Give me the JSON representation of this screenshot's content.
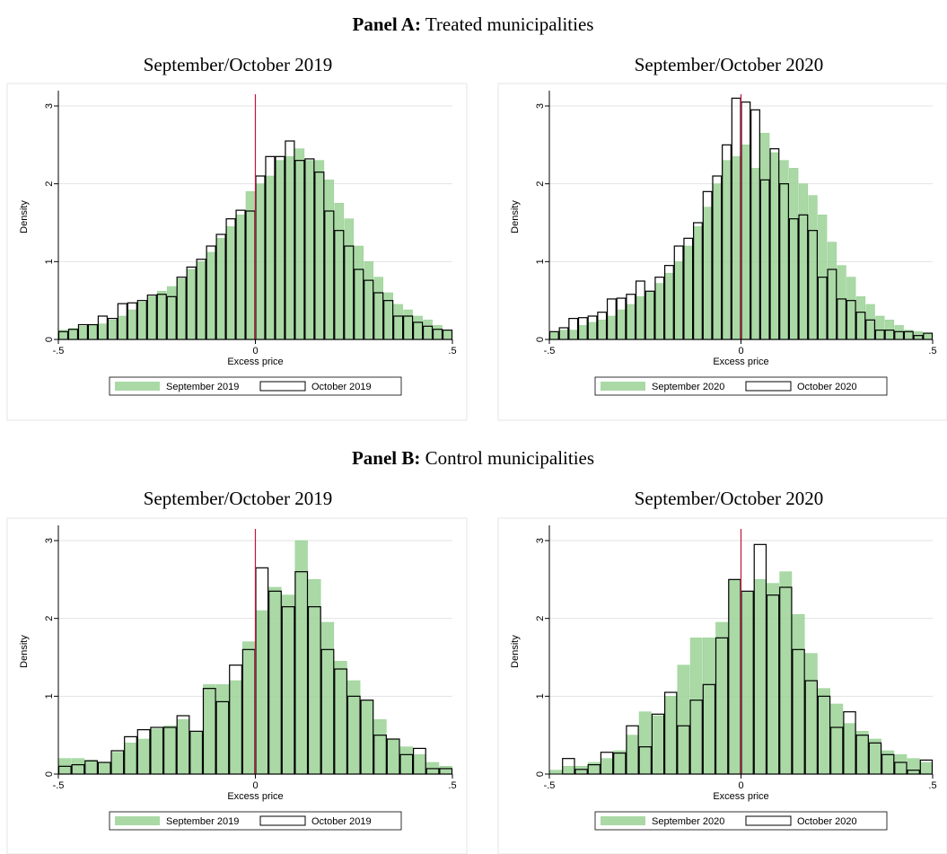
{
  "panels": [
    {
      "label": "Panel A:",
      "title": "Treated municipalities"
    },
    {
      "label": "Panel B:",
      "title": "Control municipalities"
    }
  ],
  "chart_data": [
    {
      "type": "histogram",
      "title": "September/October 2019",
      "xlabel": "Excess price",
      "ylabel": "Density",
      "bins": [
        -0.5,
        -0.475,
        -0.45,
        -0.425,
        -0.4,
        -0.375,
        -0.35,
        -0.325,
        -0.3,
        -0.275,
        -0.25,
        -0.225,
        -0.2,
        -0.175,
        -0.15,
        -0.125,
        -0.1,
        -0.075,
        -0.05,
        -0.025,
        0,
        0.025,
        0.05,
        0.075,
        0.1,
        0.125,
        0.15,
        0.175,
        0.2,
        0.225,
        0.25,
        0.275,
        0.3,
        0.325,
        0.35,
        0.375,
        0.4,
        0.425,
        0.45,
        0.475,
        0.5
      ],
      "series": [
        {
          "name": "September 2019",
          "color": "#9bd296",
          "fill": true,
          "values": [
            0.12,
            0.14,
            0.17,
            0.19,
            0.2,
            0.25,
            0.3,
            0.38,
            0.48,
            0.55,
            0.62,
            0.68,
            0.78,
            0.9,
            1.0,
            1.12,
            1.3,
            1.45,
            1.6,
            1.9,
            2.0,
            2.1,
            2.3,
            2.35,
            2.45,
            2.3,
            2.3,
            2.05,
            1.75,
            1.55,
            1.2,
            1.0,
            0.8,
            0.6,
            0.45,
            0.38,
            0.3,
            0.25,
            0.18,
            0.12
          ]
        },
        {
          "name": "October 2019",
          "color": "#000000",
          "fill": false,
          "values": [
            0.1,
            0.13,
            0.19,
            0.19,
            0.3,
            0.27,
            0.46,
            0.47,
            0.5,
            0.57,
            0.58,
            0.55,
            0.8,
            0.93,
            1.03,
            1.2,
            1.35,
            1.55,
            1.66,
            1.65,
            2.1,
            2.35,
            2.35,
            2.55,
            2.3,
            2.32,
            2.15,
            1.65,
            1.4,
            1.2,
            0.9,
            0.76,
            0.6,
            0.5,
            0.3,
            0.3,
            0.22,
            0.17,
            0.13,
            0.12
          ]
        }
      ],
      "xlim": [
        -0.5,
        0.5
      ],
      "ylim": [
        0,
        3.15
      ],
      "xticks": [
        {
          "value": -0.5,
          "label": "-.5"
        },
        0,
        {
          "value": 0.5,
          "label": ".5"
        }
      ],
      "yticks": [
        0,
        1,
        2,
        3
      ],
      "grid": true,
      "legend": "bottom",
      "refline": {
        "value": 0,
        "color": "#c0163c"
      }
    },
    {
      "type": "histogram",
      "title": "September/October 2020",
      "xlabel": "Excess price",
      "ylabel": "Density",
      "bins": [
        -0.5,
        -0.475,
        -0.45,
        -0.425,
        -0.4,
        -0.375,
        -0.35,
        -0.325,
        -0.3,
        -0.275,
        -0.25,
        -0.225,
        -0.2,
        -0.175,
        -0.15,
        -0.125,
        -0.1,
        -0.075,
        -0.05,
        -0.025,
        0,
        0.025,
        0.05,
        0.075,
        0.1,
        0.125,
        0.15,
        0.175,
        0.2,
        0.225,
        0.25,
        0.275,
        0.3,
        0.325,
        0.35,
        0.375,
        0.4,
        0.425,
        0.45,
        0.475,
        0.5
      ],
      "series": [
        {
          "name": "September 2020",
          "color": "#9bd296",
          "fill": true,
          "values": [
            0.1,
            0.12,
            0.12,
            0.18,
            0.22,
            0.25,
            0.3,
            0.38,
            0.45,
            0.55,
            0.62,
            0.72,
            0.85,
            1.0,
            1.2,
            1.45,
            1.7,
            2.0,
            2.3,
            2.35,
            2.5,
            2.2,
            2.65,
            2.4,
            2.3,
            2.2,
            2.0,
            1.85,
            1.6,
            1.25,
            0.95,
            0.8,
            0.55,
            0.45,
            0.3,
            0.25,
            0.18,
            0.12,
            0.1,
            0.08
          ]
        },
        {
          "name": "October 2020",
          "color": "#000000",
          "fill": false,
          "values": [
            0.1,
            0.15,
            0.27,
            0.28,
            0.3,
            0.35,
            0.52,
            0.53,
            0.58,
            0.75,
            0.62,
            0.8,
            0.95,
            1.2,
            1.3,
            1.5,
            1.9,
            2.1,
            2.5,
            3.1,
            3.05,
            2.95,
            2.05,
            2.45,
            2.0,
            1.55,
            1.6,
            1.4,
            0.8,
            0.9,
            0.52,
            0.5,
            0.35,
            0.25,
            0.12,
            0.12,
            0.1,
            0.1,
            0.05,
            0.08
          ]
        }
      ],
      "xlim": [
        -0.5,
        0.5
      ],
      "ylim": [
        0,
        3.15
      ],
      "xticks": [
        {
          "value": -0.5,
          "label": "-.5"
        },
        0,
        {
          "value": 0.5,
          "label": ".5"
        }
      ],
      "yticks": [
        0,
        1,
        2,
        3
      ],
      "grid": true,
      "legend": "bottom",
      "refline": {
        "value": 0,
        "color": "#c0163c"
      }
    },
    {
      "type": "histogram",
      "title": "September/October 2019",
      "xlabel": "Excess price",
      "ylabel": "Density",
      "bins": [
        -0.5,
        -0.4667,
        -0.4333,
        -0.4,
        -0.3667,
        -0.3333,
        -0.3,
        -0.2667,
        -0.2333,
        -0.2,
        -0.1667,
        -0.1333,
        -0.1,
        -0.0667,
        -0.0333,
        0,
        0.0333,
        0.0667,
        0.1,
        0.1333,
        0.1667,
        0.2,
        0.2333,
        0.2667,
        0.3,
        0.3333,
        0.3667,
        0.4,
        0.4333,
        0.4667,
        0.5
      ],
      "series": [
        {
          "name": "September 2019",
          "color": "#9bd296",
          "fill": true,
          "values": [
            0.2,
            0.2,
            0.18,
            0.15,
            0.28,
            0.4,
            0.45,
            0.58,
            0.62,
            0.7,
            0.55,
            1.15,
            1.15,
            1.2,
            1.7,
            2.1,
            2.4,
            2.3,
            3.0,
            2.5,
            1.95,
            1.45,
            1.2,
            0.95,
            0.7,
            0.45,
            0.35,
            0.25,
            0.15,
            0.1
          ]
        },
        {
          "name": "October 2019",
          "color": "#000000",
          "fill": false,
          "values": [
            0.1,
            0.12,
            0.17,
            0.15,
            0.3,
            0.48,
            0.57,
            0.6,
            0.6,
            0.75,
            0.55,
            1.1,
            0.93,
            1.4,
            1.6,
            2.65,
            2.35,
            2.15,
            2.6,
            2.15,
            1.6,
            1.35,
            1.0,
            0.95,
            0.5,
            0.45,
            0.25,
            0.33,
            0.07,
            0.07
          ]
        }
      ],
      "xlim": [
        -0.5,
        0.5
      ],
      "ylim": [
        0,
        3.15
      ],
      "xticks": [
        {
          "value": -0.5,
          "label": "-.5"
        },
        0,
        {
          "value": 0.5,
          "label": ".5"
        }
      ],
      "yticks": [
        0,
        1,
        2,
        3
      ],
      "grid": true,
      "legend": "bottom",
      "refline": {
        "value": 0,
        "color": "#c0163c"
      }
    },
    {
      "type": "histogram",
      "title": "September/October 2020",
      "xlabel": "Excess price",
      "ylabel": "Density",
      "bins": [
        -0.5,
        -0.4667,
        -0.4333,
        -0.4,
        -0.3667,
        -0.3333,
        -0.3,
        -0.2667,
        -0.2333,
        -0.2,
        -0.1667,
        -0.1333,
        -0.1,
        -0.0667,
        -0.0333,
        0,
        0.0333,
        0.0667,
        0.1,
        0.1333,
        0.1667,
        0.2,
        0.2333,
        0.2667,
        0.3,
        0.3333,
        0.3667,
        0.4,
        0.4333,
        0.4667,
        0.5
      ],
      "series": [
        {
          "name": "September 2020",
          "color": "#9bd296",
          "fill": true,
          "values": [
            0.05,
            0.1,
            0.1,
            0.15,
            0.2,
            0.3,
            0.5,
            0.8,
            0.75,
            1.0,
            1.4,
            1.75,
            1.75,
            1.95,
            2.5,
            2.35,
            2.5,
            2.45,
            2.6,
            2.05,
            1.55,
            1.1,
            0.9,
            0.65,
            0.55,
            0.45,
            0.3,
            0.25,
            0.2,
            0.15
          ]
        },
        {
          "name": "October 2020",
          "color": "#000000",
          "fill": false,
          "values": [
            0.0,
            0.2,
            0.06,
            0.12,
            0.28,
            0.27,
            0.62,
            0.35,
            0.77,
            1.05,
            0.62,
            0.95,
            1.15,
            1.75,
            2.5,
            2.35,
            2.95,
            2.3,
            2.4,
            1.6,
            1.2,
            1.0,
            0.6,
            0.8,
            0.5,
            0.4,
            0.25,
            0.15,
            0.05,
            0.18
          ]
        }
      ],
      "xlim": [
        -0.5,
        0.5
      ],
      "ylim": [
        0,
        3.15
      ],
      "xticks": [
        {
          "value": -0.5,
          "label": "-.5"
        },
        0,
        {
          "value": 0.5,
          "label": ".5"
        }
      ],
      "yticks": [
        0,
        1,
        2,
        3
      ],
      "grid": true,
      "legend": "bottom",
      "refline": {
        "value": 0,
        "color": "#c0163c"
      }
    }
  ]
}
